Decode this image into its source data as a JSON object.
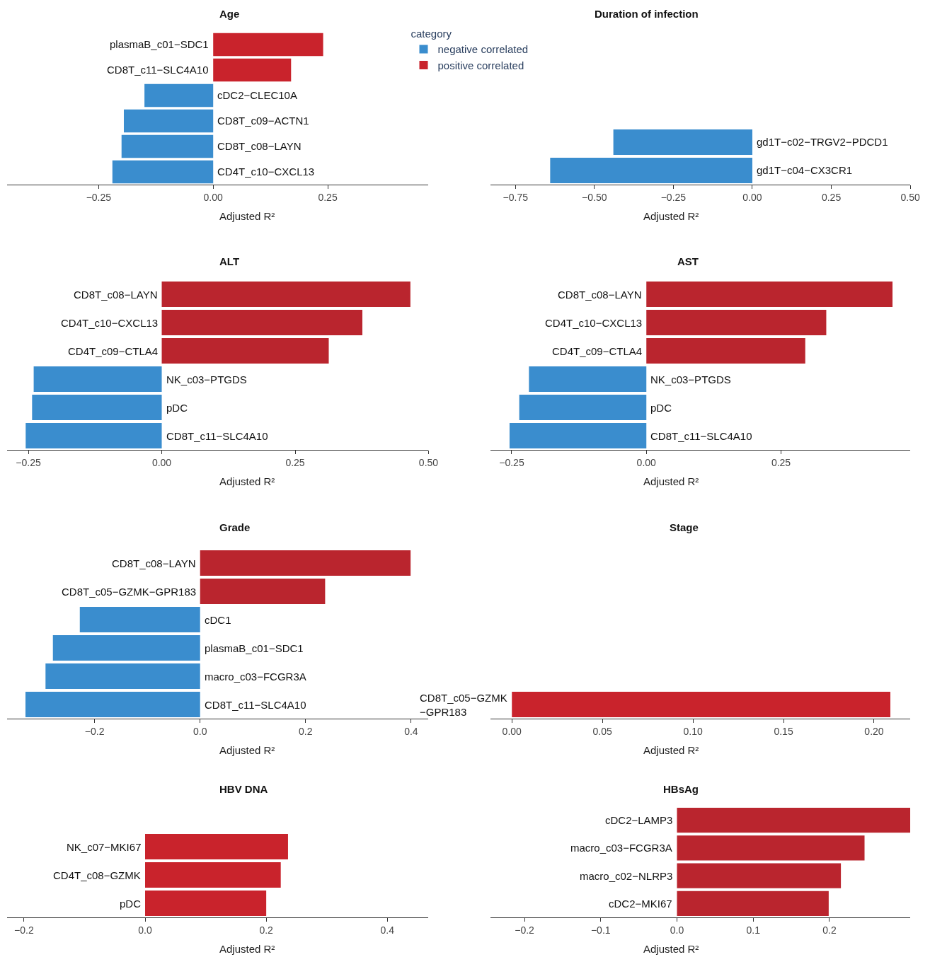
{
  "chart_data": [
    {
      "type": "bar",
      "orientation": "horizontal",
      "title": "Age",
      "xlabel": "Adjusted R²",
      "legend_title": "category",
      "legend": "right",
      "categories": [
        "plasmaB_c01−SDC1",
        "CD8T_c11−SLC4A10",
        "cDC2−CLEC10A",
        "CD8T_c09−ACTN1",
        "CD8T_c08−LAYN",
        "CD4T_c10−CXCL13"
      ],
      "series": [
        {
          "name": "negative correlated",
          "color": "#3a8dce",
          "values": [
            null,
            null,
            -0.15,
            -0.195,
            -0.2,
            -0.22
          ]
        },
        {
          "name": "positive correlated",
          "color": "#c9232c",
          "values": [
            0.24,
            0.17,
            null,
            null,
            null,
            null
          ]
        }
      ],
      "xlim": [
        -0.45,
        0.47
      ],
      "xticks": [
        {
          "value": -0.25,
          "label": "−0.25"
        },
        {
          "value": 0,
          "label": "0.00"
        },
        {
          "value": 0.25,
          "label": "0.25"
        }
      ]
    },
    {
      "type": "bar",
      "orientation": "horizontal",
      "title": "Duration of infection",
      "xlabel": "Adjusted R²",
      "categories": [
        "gd1T−c02−TRGV2−PDCD1",
        "gd1T−c04−CX3CR1"
      ],
      "series": [
        {
          "color": "#3a8dce",
          "values": [
            -0.44,
            -0.64
          ]
        }
      ],
      "xlim": [
        -0.83,
        0.5
      ],
      "xticks": [
        {
          "value": -0.75,
          "label": "−0.75"
        },
        {
          "value": -0.5,
          "label": "−0.50"
        },
        {
          "value": -0.25,
          "label": "−0.25"
        },
        {
          "value": 0,
          "label": "0.00"
        },
        {
          "value": 0.25,
          "label": "0.25"
        },
        {
          "value": 0.5,
          "label": "0.50"
        }
      ]
    },
    {
      "type": "bar",
      "orientation": "horizontal",
      "title": "ALT",
      "xlabel": "Adjusted R²",
      "categories": [
        "CD8T_c08−LAYN",
        "CD4T_c10−CXCL13",
        "CD4T_c09−CTLA4",
        "NK_c03−PTGDS",
        "pDC",
        "CD8T_c11−SLC4A10"
      ],
      "series": [
        {
          "color": "#3a8dce",
          "values": [
            null,
            null,
            null,
            -0.24,
            -0.243,
            -0.255
          ]
        },
        {
          "color": "#ba252e",
          "values": [
            0.466,
            0.376,
            0.313,
            null,
            null,
            null
          ]
        }
      ],
      "xlim": [
        -0.29,
        0.5
      ],
      "xticks": [
        {
          "value": -0.25,
          "label": "−0.25"
        },
        {
          "value": 0,
          "label": "0.00"
        },
        {
          "value": 0.25,
          "label": "0.25"
        },
        {
          "value": 0.5,
          "label": "0.50"
        }
      ]
    },
    {
      "type": "bar",
      "orientation": "horizontal",
      "title": "AST",
      "xlabel": "Adjusted R²",
      "categories": [
        "CD8T_c08−LAYN",
        "CD4T_c10−CXCL13",
        "CD4T_c09−CTLA4",
        "NK_c03−PTGDS",
        "pDC",
        "CD8T_c11−SLC4A10"
      ],
      "series": [
        {
          "color": "#3a8dce",
          "values": [
            null,
            null,
            null,
            -0.218,
            -0.236,
            -0.254
          ]
        },
        {
          "color": "#ba252e",
          "values": [
            0.457,
            0.334,
            0.295,
            null,
            null,
            null
          ]
        }
      ],
      "xlim": [
        -0.29,
        0.49
      ],
      "xticks": [
        {
          "value": -0.25,
          "label": "−0.25"
        },
        {
          "value": 0,
          "label": "0.00"
        },
        {
          "value": 0.25,
          "label": "0.25"
        }
      ]
    },
    {
      "type": "bar",
      "orientation": "horizontal",
      "title": "Grade",
      "xlabel": "Adjusted R²",
      "categories": [
        "CD8T_c08−LAYN",
        "CD8T_c05−GZMK−GPR183",
        "cDC1",
        "plasmaB_c01−SDC1",
        "macro_c03−FCGR3A",
        "CD8T_c11−SLC4A10"
      ],
      "series": [
        {
          "color": "#3a8dce",
          "values": [
            null,
            null,
            -0.228,
            -0.279,
            -0.293,
            -0.331
          ]
        },
        {
          "color": "#ba252e",
          "values": [
            0.399,
            0.237,
            null,
            null,
            null,
            null
          ]
        }
      ],
      "xlim": [
        -0.366,
        0.433
      ],
      "xticks": [
        {
          "value": -0.2,
          "label": "−0.2"
        },
        {
          "value": 0,
          "label": "0.0"
        },
        {
          "value": 0.2,
          "label": "0.2"
        },
        {
          "value": 0.4,
          "label": "0.4"
        }
      ]
    },
    {
      "type": "bar",
      "orientation": "horizontal",
      "title": "Stage",
      "xlabel": "Adjusted R²",
      "categories": [
        "CD8T_c05−GZMK\n−GPR183"
      ],
      "series": [
        {
          "color": "#c9232c",
          "values": [
            0.209
          ]
        }
      ],
      "xlim": [
        -0.012,
        0.22
      ],
      "xticks": [
        {
          "value": 0,
          "label": "0.00"
        },
        {
          "value": 0.05,
          "label": "0.05"
        },
        {
          "value": 0.1,
          "label": "0.10"
        },
        {
          "value": 0.15,
          "label": "0.15"
        },
        {
          "value": 0.2,
          "label": "0.20"
        }
      ]
    },
    {
      "type": "bar",
      "orientation": "horizontal",
      "title": "HBV DNA",
      "xlabel": "Adjusted R²",
      "categories": [
        "NK_c07−MKI67",
        "CD4T_c08−GZMK",
        "pDC"
      ],
      "series": [
        {
          "color": "#c9232c",
          "values": [
            0.236,
            0.224,
            0.2
          ]
        }
      ],
      "xlim": [
        -0.228,
        0.468
      ],
      "xticks": [
        {
          "value": -0.2,
          "label": "−0.2"
        },
        {
          "value": 0,
          "label": "0.0"
        },
        {
          "value": 0.2,
          "label": "0.2"
        },
        {
          "value": 0.4,
          "label": "0.4"
        }
      ]
    },
    {
      "type": "bar",
      "orientation": "horizontal",
      "title": "HBsAg",
      "xlabel": "Adjusted R²",
      "categories": [
        "cDC2−LAMP3",
        "macro_c03−FCGR3A",
        "macro_c02−NLRP3",
        "cDC2−MKI67"
      ],
      "series": [
        {
          "color": "#ba252e",
          "values": [
            0.306,
            0.246,
            0.215,
            0.199
          ]
        }
      ],
      "xlim": [
        -0.245,
        0.306
      ],
      "xticks": [
        {
          "value": -0.2,
          "label": "−0.2"
        },
        {
          "value": -0.1,
          "label": "−0.1"
        },
        {
          "value": 0,
          "label": "0.0"
        },
        {
          "value": 0.1,
          "label": "0.1"
        },
        {
          "value": 0.2,
          "label": "0.2"
        }
      ]
    }
  ]
}
